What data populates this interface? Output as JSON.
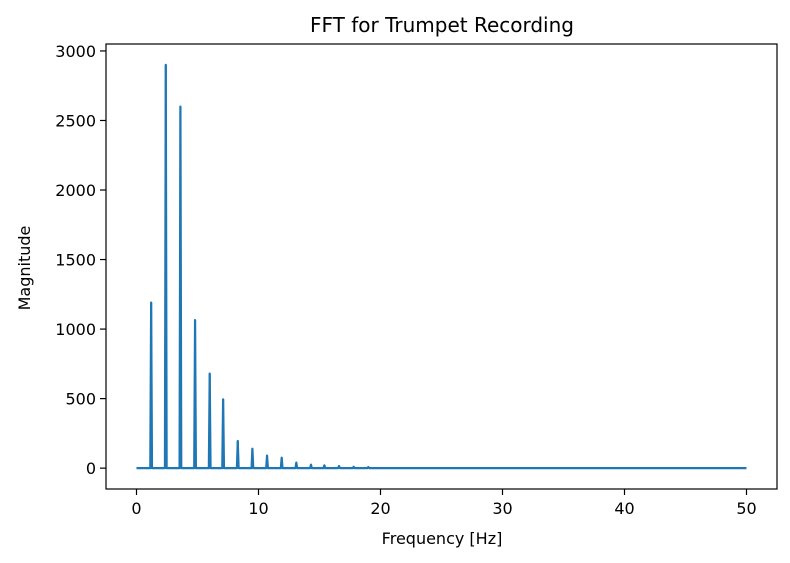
{
  "chart_data": {
    "type": "line",
    "title": "FFT for Trumpet Recording",
    "xlabel": "Frequency [Hz]",
    "ylabel": "Magnitude",
    "xlim": [
      -2.5,
      52.5
    ],
    "ylim": [
      -150,
      3050
    ],
    "xticks": [
      0,
      10,
      20,
      30,
      40,
      50
    ],
    "xtick_labels": [
      "0",
      "10",
      "20",
      "30",
      "40",
      "50"
    ],
    "yticks": [
      0,
      500,
      1000,
      1500,
      2000,
      2500,
      3000
    ],
    "ytick_labels": [
      "0",
      "500",
      "1000",
      "1500",
      "2000",
      "2500",
      "3000"
    ],
    "grid": false,
    "series": [
      {
        "name": "FFT magnitude",
        "color": "#1f77b4",
        "x_range": [
          0,
          50
        ],
        "baseline": 0,
        "peaks": [
          {
            "x": 1.2,
            "y": 1190
          },
          {
            "x": 2.4,
            "y": 2900
          },
          {
            "x": 3.6,
            "y": 2600
          },
          {
            "x": 4.8,
            "y": 1065
          },
          {
            "x": 6.0,
            "y": 680
          },
          {
            "x": 7.1,
            "y": 495
          },
          {
            "x": 8.3,
            "y": 195
          },
          {
            "x": 9.5,
            "y": 140
          },
          {
            "x": 10.7,
            "y": 90
          },
          {
            "x": 11.9,
            "y": 75
          },
          {
            "x": 13.1,
            "y": 40
          },
          {
            "x": 14.3,
            "y": 25
          },
          {
            "x": 15.4,
            "y": 20
          },
          {
            "x": 16.6,
            "y": 15
          },
          {
            "x": 17.8,
            "y": 10
          },
          {
            "x": 19.0,
            "y": 8
          }
        ]
      }
    ]
  }
}
